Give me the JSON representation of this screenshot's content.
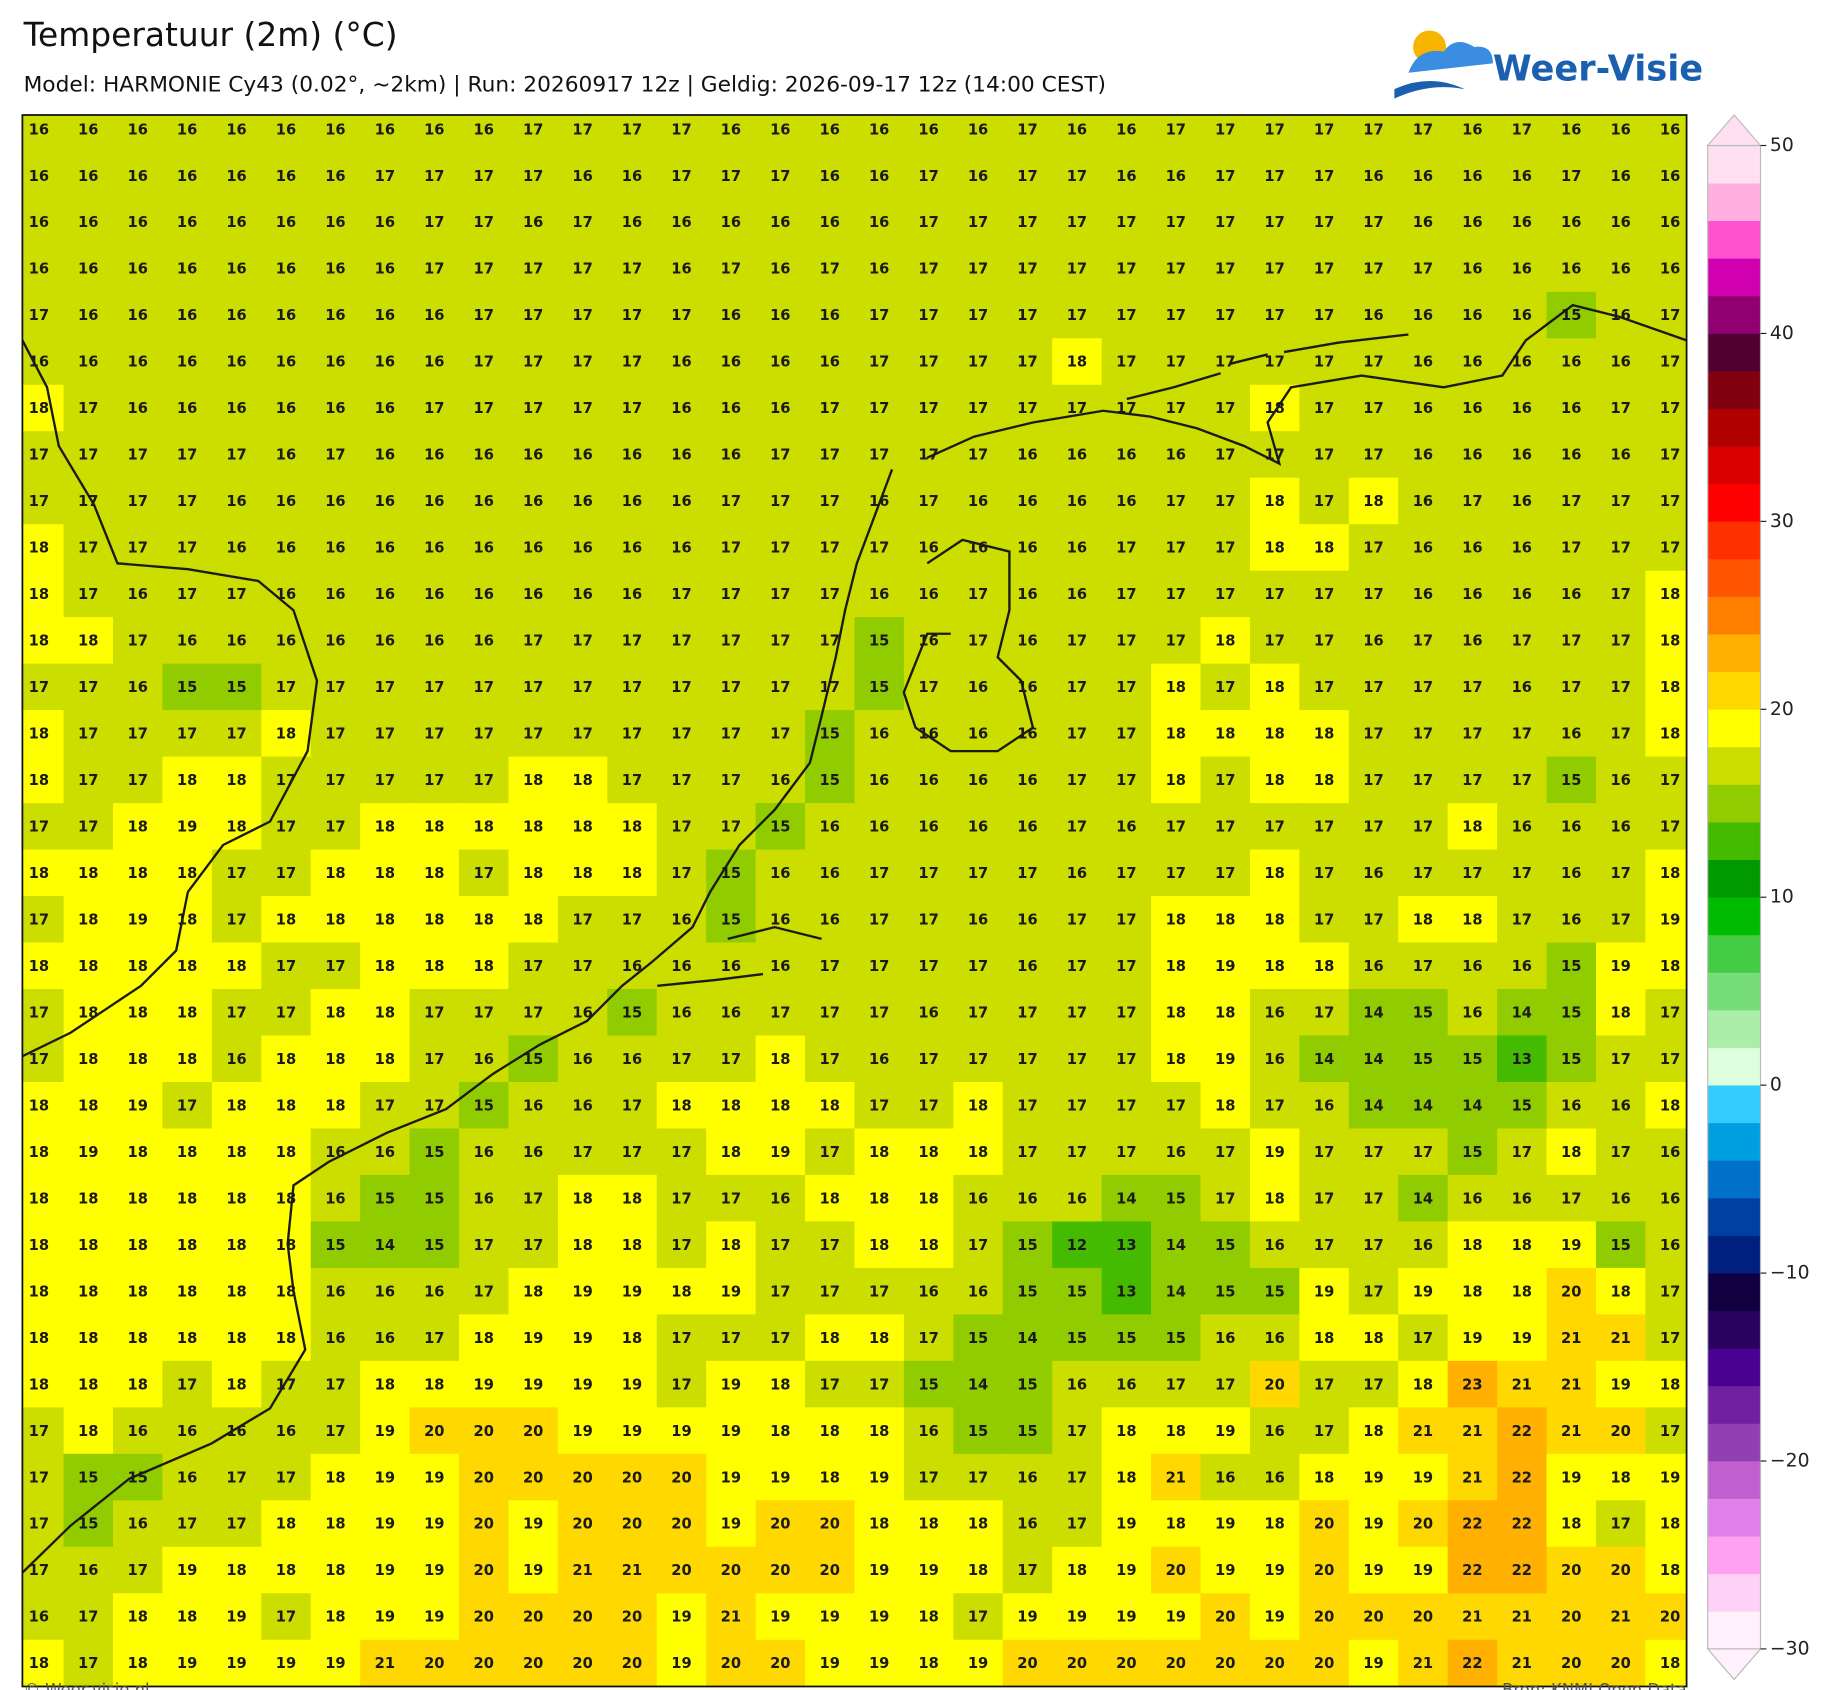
{
  "header": {
    "title": "Temperatuur (2m) (°C)",
    "subtitle": "Model: HARMONIE Cy43 (0.02°, ~2km)  |  Run: 20260917 12z  |  Geldig: 2026-09-17 12z (14:00 CEST)"
  },
  "logo": "Weer-Visie",
  "map": {
    "rows": [
      [
        16,
        16,
        16,
        16,
        16,
        16,
        16,
        16,
        16,
        16,
        17,
        17,
        17,
        17,
        16,
        16,
        16,
        16,
        16,
        16,
        17,
        16,
        16,
        17,
        17,
        17,
        17,
        17,
        17,
        16,
        17,
        16,
        16,
        16
      ],
      [
        16,
        16,
        16,
        16,
        16,
        16,
        16,
        17,
        17,
        17,
        17,
        16,
        16,
        17,
        17,
        17,
        16,
        16,
        17,
        16,
        17,
        17,
        16,
        16,
        17,
        17,
        17,
        16,
        16,
        16,
        16,
        17,
        16,
        16
      ],
      [
        16,
        16,
        16,
        16,
        16,
        16,
        16,
        16,
        17,
        17,
        16,
        17,
        16,
        16,
        16,
        16,
        16,
        16,
        17,
        17,
        17,
        17,
        17,
        17,
        17,
        17,
        17,
        17,
        16,
        16,
        16,
        16,
        16,
        16
      ],
      [
        16,
        16,
        16,
        16,
        16,
        16,
        16,
        16,
        17,
        17,
        17,
        17,
        17,
        16,
        17,
        16,
        17,
        16,
        17,
        17,
        17,
        17,
        17,
        17,
        17,
        17,
        17,
        17,
        17,
        16,
        16,
        16,
        16,
        16
      ],
      [
        17,
        16,
        16,
        16,
        16,
        16,
        16,
        16,
        16,
        17,
        17,
        17,
        17,
        17,
        16,
        16,
        16,
        17,
        17,
        17,
        17,
        17,
        17,
        17,
        17,
        17,
        17,
        16,
        16,
        16,
        16,
        15,
        16,
        17
      ],
      [
        16,
        16,
        16,
        16,
        16,
        16,
        16,
        16,
        16,
        17,
        17,
        17,
        17,
        16,
        16,
        16,
        16,
        17,
        17,
        17,
        17,
        18,
        17,
        17,
        17,
        17,
        17,
        17,
        16,
        16,
        16,
        16,
        16,
        17
      ],
      [
        18,
        17,
        16,
        16,
        16,
        16,
        16,
        16,
        17,
        17,
        17,
        17,
        17,
        16,
        16,
        16,
        17,
        17,
        17,
        17,
        17,
        17,
        17,
        17,
        17,
        18,
        17,
        17,
        16,
        16,
        16,
        16,
        17,
        17
      ],
      [
        17,
        17,
        17,
        17,
        17,
        16,
        17,
        16,
        16,
        16,
        16,
        16,
        16,
        16,
        16,
        17,
        17,
        17,
        17,
        17,
        16,
        16,
        16,
        16,
        17,
        17,
        17,
        17,
        16,
        16,
        16,
        16,
        16,
        17
      ],
      [
        17,
        17,
        17,
        17,
        16,
        16,
        16,
        16,
        16,
        16,
        16,
        16,
        16,
        16,
        17,
        17,
        17,
        16,
        17,
        16,
        16,
        16,
        16,
        17,
        17,
        18,
        17,
        18,
        16,
        17,
        16,
        17,
        17,
        17
      ],
      [
        18,
        17,
        17,
        17,
        16,
        16,
        16,
        16,
        16,
        16,
        16,
        16,
        16,
        16,
        17,
        17,
        17,
        17,
        16,
        16,
        16,
        16,
        17,
        17,
        17,
        18,
        18,
        17,
        16,
        16,
        16,
        17,
        17,
        17
      ],
      [
        18,
        17,
        16,
        17,
        17,
        16,
        16,
        16,
        16,
        16,
        16,
        16,
        16,
        17,
        17,
        17,
        17,
        16,
        16,
        17,
        16,
        16,
        17,
        17,
        17,
        17,
        17,
        17,
        16,
        16,
        16,
        16,
        17,
        18
      ],
      [
        18,
        18,
        17,
        16,
        16,
        16,
        16,
        16,
        16,
        16,
        17,
        17,
        17,
        17,
        17,
        17,
        17,
        15,
        16,
        17,
        16,
        17,
        17,
        17,
        18,
        17,
        17,
        16,
        17,
        16,
        17,
        17,
        17,
        18
      ],
      [
        17,
        17,
        16,
        15,
        15,
        17,
        17,
        17,
        17,
        17,
        17,
        17,
        17,
        17,
        17,
        17,
        17,
        15,
        17,
        16,
        16,
        17,
        17,
        18,
        17,
        18,
        17,
        17,
        17,
        17,
        16,
        17,
        17,
        18
      ],
      [
        18,
        17,
        17,
        17,
        17,
        18,
        17,
        17,
        17,
        17,
        17,
        17,
        17,
        17,
        17,
        17,
        15,
        16,
        16,
        16,
        16,
        17,
        17,
        18,
        18,
        18,
        18,
        17,
        17,
        17,
        17,
        16,
        17,
        18
      ],
      [
        18,
        17,
        17,
        18,
        18,
        17,
        17,
        17,
        17,
        17,
        18,
        18,
        17,
        17,
        17,
        16,
        15,
        16,
        16,
        16,
        16,
        17,
        17,
        18,
        17,
        18,
        18,
        17,
        17,
        17,
        17,
        15,
        16,
        17
      ],
      [
        17,
        17,
        18,
        19,
        18,
        17,
        17,
        18,
        18,
        18,
        18,
        18,
        18,
        17,
        17,
        15,
        16,
        16,
        16,
        16,
        16,
        17,
        16,
        17,
        17,
        17,
        17,
        17,
        17,
        18,
        16,
        16,
        16,
        17
      ],
      [
        18,
        18,
        18,
        18,
        17,
        17,
        18,
        18,
        18,
        17,
        18,
        18,
        18,
        17,
        15,
        16,
        16,
        17,
        17,
        17,
        17,
        16,
        17,
        17,
        17,
        18,
        17,
        16,
        17,
        17,
        17,
        16,
        17,
        18
      ],
      [
        17,
        18,
        19,
        18,
        17,
        18,
        18,
        18,
        18,
        18,
        18,
        17,
        17,
        16,
        15,
        16,
        16,
        17,
        17,
        16,
        16,
        17,
        17,
        18,
        18,
        18,
        17,
        17,
        18,
        18,
        17,
        16,
        17,
        19
      ],
      [
        18,
        18,
        18,
        18,
        18,
        17,
        17,
        18,
        18,
        18,
        17,
        17,
        16,
        16,
        16,
        16,
        17,
        17,
        17,
        17,
        16,
        17,
        17,
        18,
        19,
        18,
        18,
        16,
        17,
        16,
        16,
        15,
        19,
        18
      ],
      [
        17,
        18,
        18,
        18,
        17,
        17,
        18,
        18,
        17,
        17,
        17,
        16,
        15,
        16,
        16,
        17,
        17,
        17,
        16,
        17,
        17,
        17,
        17,
        18,
        18,
        16,
        17,
        14,
        15,
        16,
        14,
        15,
        18,
        17
      ],
      [
        17,
        18,
        18,
        18,
        16,
        18,
        18,
        18,
        17,
        16,
        15,
        16,
        16,
        17,
        17,
        18,
        17,
        16,
        17,
        17,
        17,
        17,
        17,
        18,
        19,
        16,
        14,
        14,
        15,
        15,
        13,
        15,
        17,
        17
      ],
      [
        18,
        18,
        19,
        17,
        18,
        18,
        18,
        17,
        17,
        15,
        16,
        16,
        17,
        18,
        18,
        18,
        18,
        17,
        17,
        18,
        17,
        17,
        17,
        17,
        18,
        17,
        16,
        14,
        14,
        14,
        15,
        16,
        16,
        18
      ],
      [
        18,
        19,
        18,
        18,
        18,
        18,
        16,
        16,
        15,
        16,
        16,
        17,
        17,
        17,
        18,
        19,
        17,
        18,
        18,
        18,
        17,
        17,
        17,
        16,
        17,
        19,
        17,
        17,
        17,
        15,
        17,
        18,
        17,
        16
      ],
      [
        18,
        18,
        18,
        18,
        18,
        18,
        16,
        15,
        15,
        16,
        17,
        18,
        18,
        17,
        17,
        16,
        18,
        18,
        18,
        16,
        16,
        16,
        14,
        15,
        17,
        18,
        17,
        17,
        14,
        16,
        16,
        17,
        16,
        16
      ],
      [
        18,
        18,
        18,
        18,
        18,
        18,
        15,
        14,
        15,
        17,
        17,
        18,
        18,
        17,
        18,
        17,
        17,
        18,
        18,
        17,
        15,
        12,
        13,
        14,
        15,
        16,
        17,
        17,
        16,
        18,
        18,
        19,
        15,
        16
      ],
      [
        18,
        18,
        18,
        18,
        18,
        18,
        16,
        16,
        16,
        17,
        18,
        19,
        19,
        18,
        19,
        17,
        17,
        17,
        16,
        16,
        15,
        15,
        13,
        14,
        15,
        15,
        19,
        17,
        19,
        18,
        18,
        20,
        18,
        17
      ],
      [
        18,
        18,
        18,
        18,
        18,
        18,
        16,
        16,
        17,
        18,
        19,
        19,
        18,
        17,
        17,
        17,
        18,
        18,
        17,
        15,
        14,
        15,
        15,
        15,
        16,
        16,
        18,
        18,
        17,
        19,
        19,
        21,
        21,
        17
      ],
      [
        18,
        18,
        18,
        17,
        18,
        17,
        17,
        18,
        18,
        19,
        19,
        19,
        19,
        17,
        19,
        18,
        17,
        17,
        15,
        14,
        15,
        16,
        16,
        17,
        17,
        20,
        17,
        17,
        18,
        23,
        21,
        21,
        19,
        18
      ],
      [
        17,
        18,
        16,
        16,
        16,
        16,
        17,
        19,
        20,
        20,
        20,
        19,
        19,
        19,
        19,
        18,
        18,
        18,
        16,
        15,
        15,
        17,
        18,
        18,
        19,
        16,
        17,
        18,
        21,
        21,
        22,
        21,
        20,
        17
      ],
      [
        17,
        15,
        15,
        16,
        17,
        17,
        18,
        19,
        19,
        20,
        20,
        20,
        20,
        20,
        19,
        19,
        18,
        19,
        17,
        17,
        16,
        17,
        18,
        21,
        16,
        16,
        18,
        19,
        19,
        21,
        22,
        19,
        18,
        19
      ],
      [
        17,
        15,
        16,
        17,
        17,
        18,
        18,
        19,
        19,
        20,
        19,
        20,
        20,
        20,
        19,
        20,
        20,
        18,
        18,
        18,
        16,
        17,
        19,
        18,
        19,
        18,
        20,
        19,
        20,
        22,
        22,
        18,
        17,
        18
      ],
      [
        17,
        16,
        17,
        19,
        18,
        18,
        18,
        19,
        19,
        20,
        19,
        21,
        21,
        20,
        20,
        20,
        20,
        19,
        19,
        18,
        17,
        18,
        19,
        20,
        19,
        19,
        20,
        19,
        19,
        22,
        22,
        20,
        20,
        18
      ],
      [
        16,
        17,
        18,
        18,
        19,
        17,
        18,
        19,
        19,
        20,
        20,
        20,
        20,
        19,
        21,
        19,
        19,
        19,
        18,
        17,
        19,
        19,
        19,
        19,
        20,
        19,
        20,
        20,
        20,
        21,
        21,
        20,
        21,
        20
      ],
      [
        18,
        17,
        18,
        19,
        19,
        19,
        19,
        21,
        20,
        20,
        20,
        20,
        20,
        19,
        20,
        20,
        19,
        19,
        18,
        19,
        20,
        20,
        20,
        20,
        20,
        20,
        20,
        19,
        21,
        22,
        21,
        20,
        20,
        18
      ]
    ]
  },
  "colorbar": {
    "lim": [
      -30,
      50
    ],
    "ticks": [
      {
        "value": -30,
        "label": "−30"
      },
      {
        "value": -20,
        "label": "−20"
      },
      {
        "value": -10,
        "label": "−10"
      },
      0,
      10,
      20,
      30,
      40,
      50
    ],
    "colors": [
      "#fff0fc",
      "#ffd0f8",
      "#ffa0f0",
      "#e080e8",
      "#c060d0",
      "#9040b0",
      "#7020a0",
      "#4a0090",
      "#2a0060",
      "#100040",
      "#002080",
      "#0040a0",
      "#0070c8",
      "#00a0e0",
      "#33ccff",
      "#ddffdd",
      "#aaeeaa",
      "#77dd77",
      "#44cc44",
      "#00bb00",
      "#009900",
      "#44bb00",
      "#90cc00",
      "#ccdd00",
      "#ffff00",
      "#ffd800",
      "#ffb000",
      "#ff8000",
      "#ff5500",
      "#ff3000",
      "#ff0000",
      "#d80000",
      "#b00000",
      "#800010",
      "#500030",
      "#900070",
      "#d000b0",
      "#ff50d0",
      "#ffb0e0",
      "#ffe0f0"
    ]
  },
  "footer": {
    "left": "© Weer-visie.nl",
    "right": "Bron: KNMI Open Data"
  }
}
